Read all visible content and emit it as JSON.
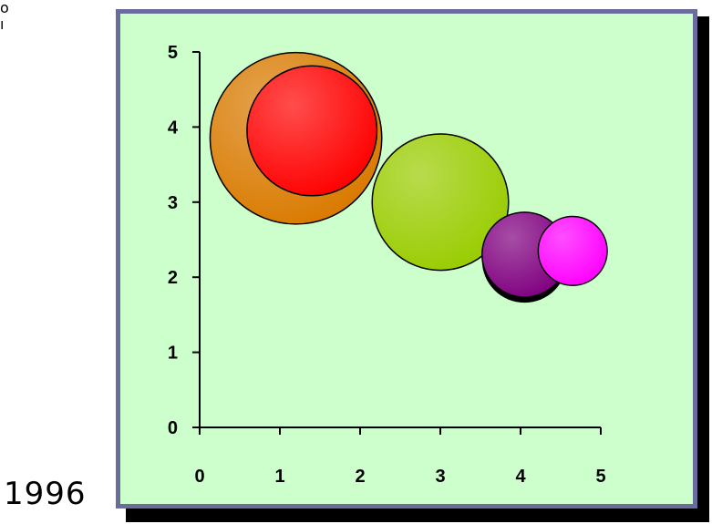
{
  "corner_text": "o\nı",
  "year_label": "1996",
  "colors": {
    "plot_background": "#ccffcc",
    "frame_border": "#6a6c9c",
    "frame_shadow": "#000000"
  },
  "chart_data": {
    "type": "scatter",
    "subtype": "bubble",
    "title": "",
    "xlabel": "",
    "ylabel": "",
    "xlim": [
      0,
      5
    ],
    "ylim": [
      0,
      5
    ],
    "x_ticks": [
      "0",
      "1",
      "2",
      "3",
      "4",
      "5"
    ],
    "y_ticks": [
      "0",
      "1",
      "2",
      "3",
      "4",
      "5"
    ],
    "grid": false,
    "legend": "none",
    "series": [
      {
        "x": 1.2,
        "y": 3.85,
        "size": 1.07,
        "color": "#d97a00"
      },
      {
        "x": 1.4,
        "y": 3.95,
        "size": 0.81,
        "color": "#ff0000"
      },
      {
        "x": 3.0,
        "y": 3.0,
        "size": 0.85,
        "color": "#99cc00"
      },
      {
        "x": 4.05,
        "y": 2.3,
        "size": 0.53,
        "color": "#800080",
        "shadow": true
      },
      {
        "x": 4.65,
        "y": 2.35,
        "size": 0.43,
        "color": "#ff00ff"
      }
    ]
  }
}
